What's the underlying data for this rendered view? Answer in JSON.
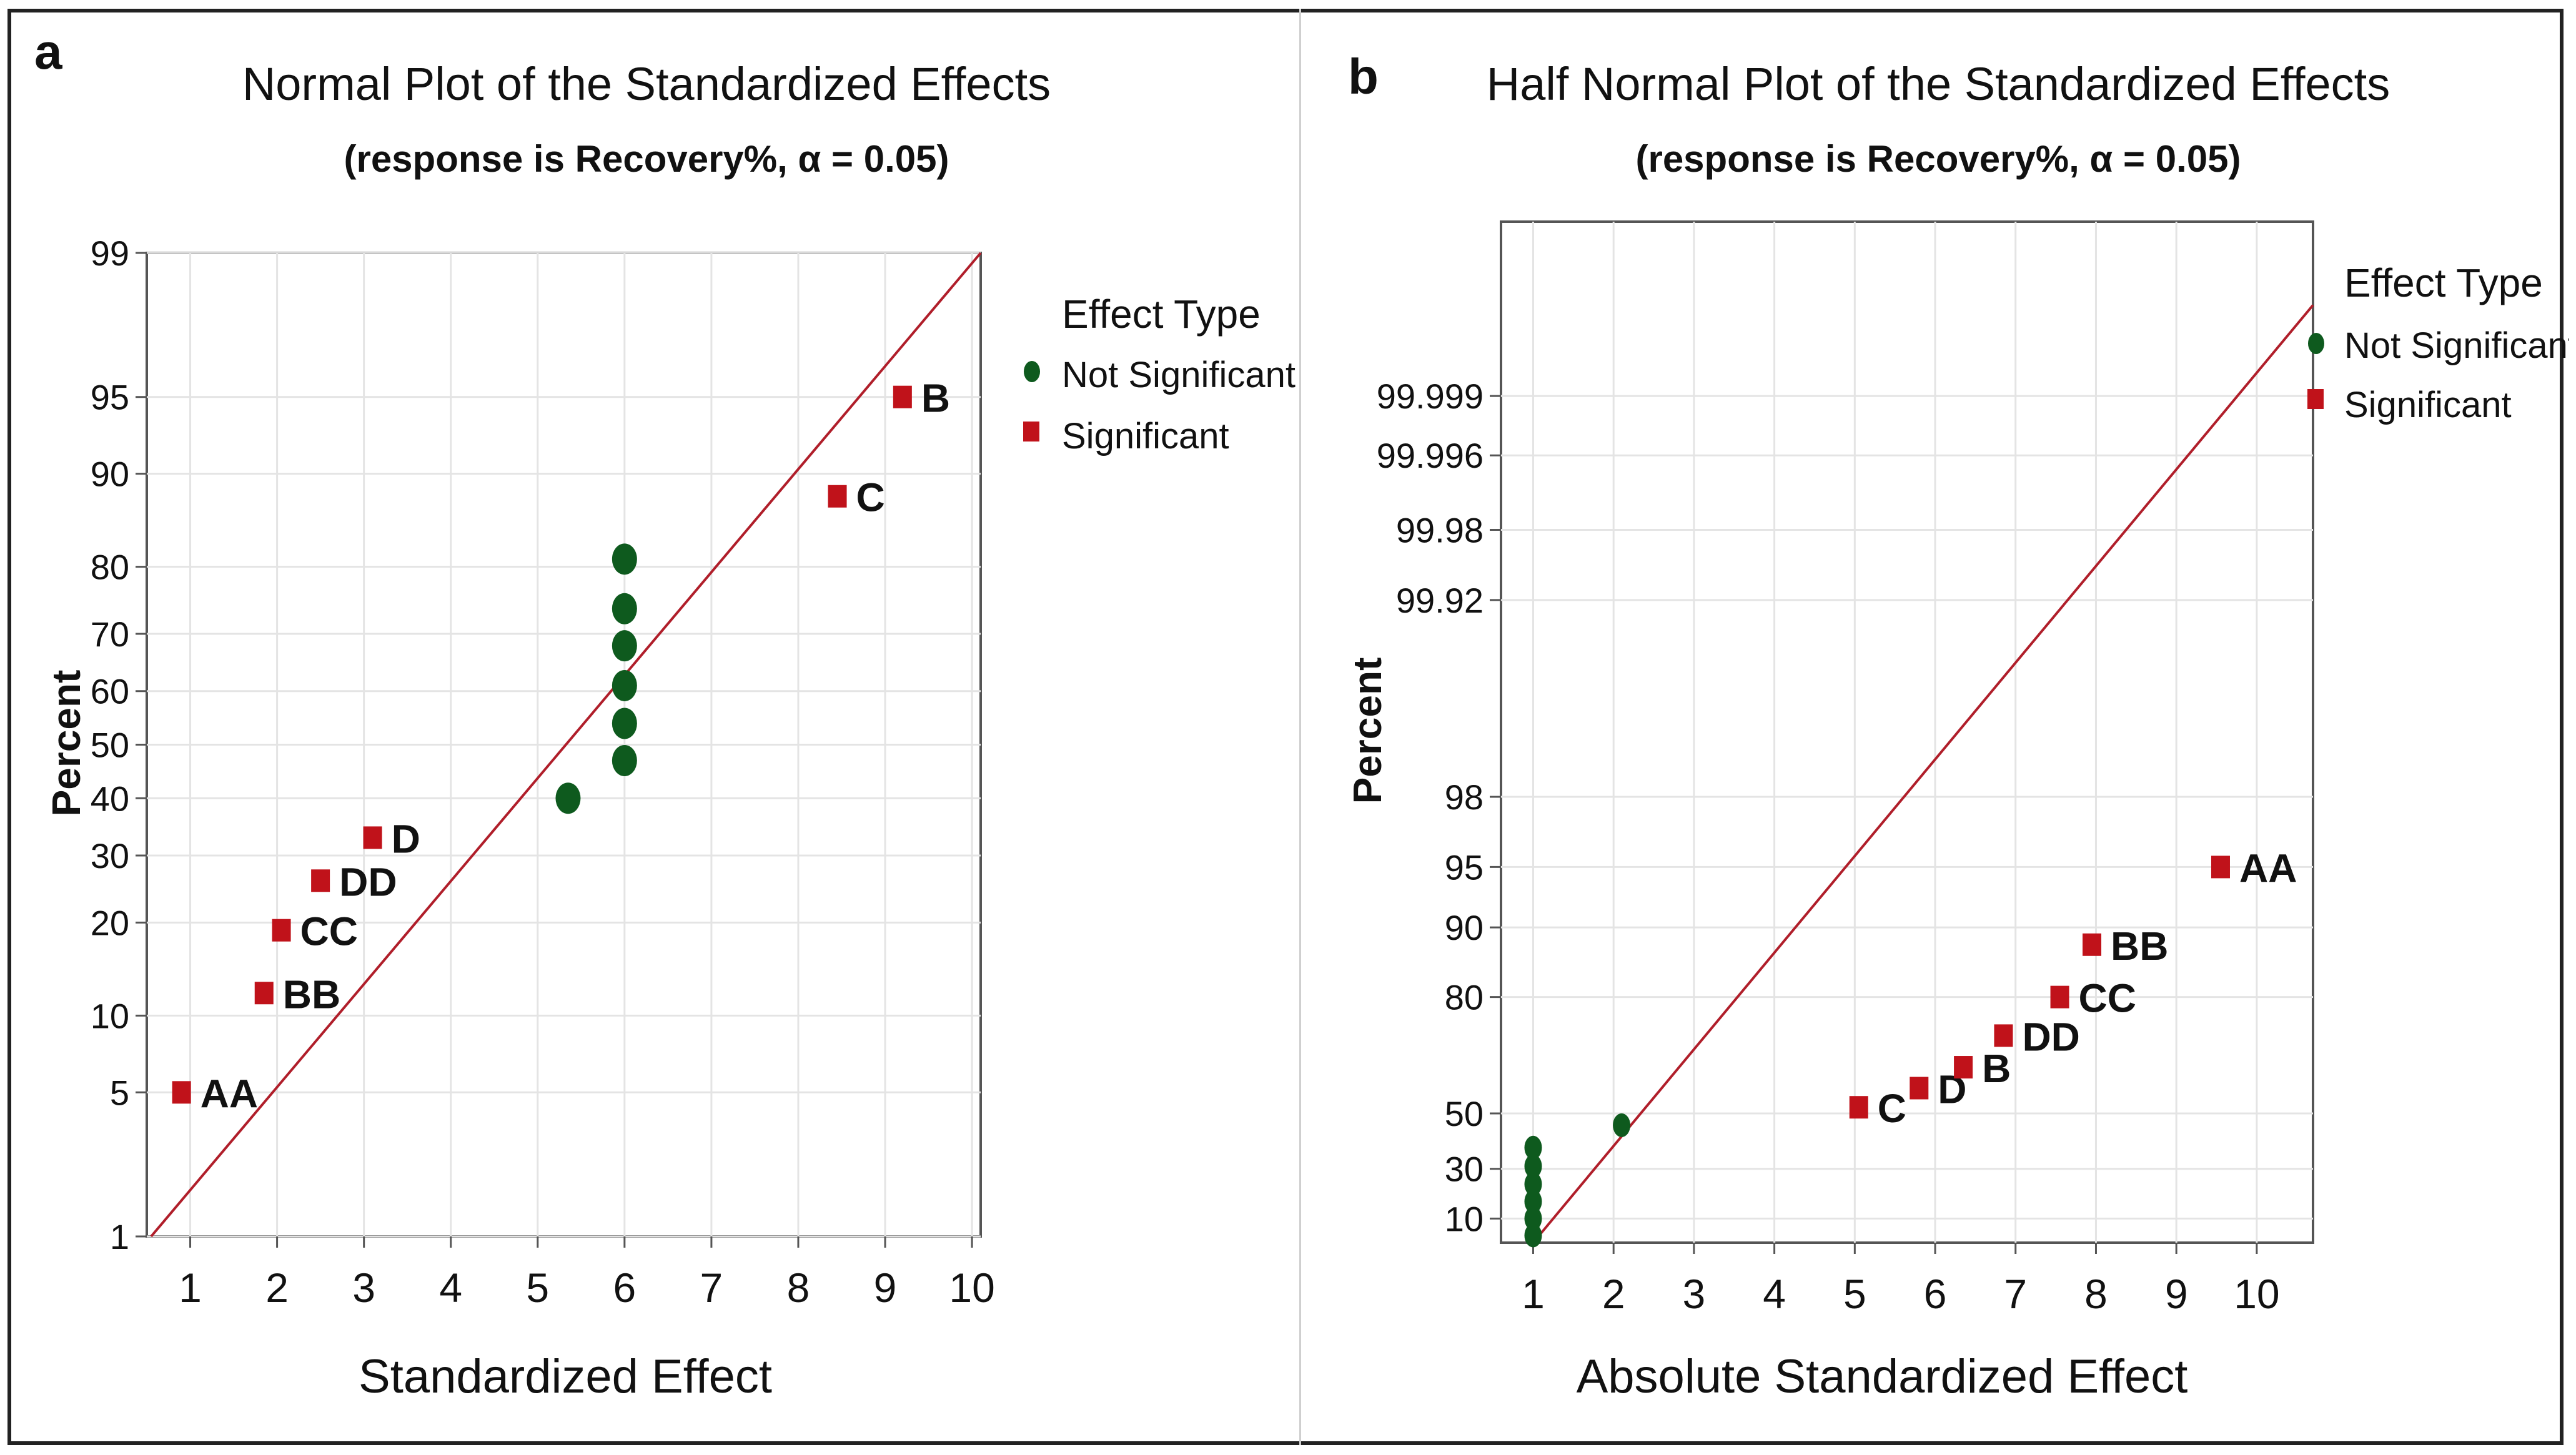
{
  "colors": {
    "significant": "#c0121a",
    "not_significant": "#0e5a1e",
    "reference_line": "#b01e2a",
    "grid": "#e4e4e4",
    "axis": "#555555",
    "text": "#111111"
  },
  "chart_data": [
    {
      "panel_letter": "a",
      "type": "scatter",
      "title": "Normal Plot of the Standardized Effects",
      "subtitle": "(response is Recovery%, α = 0.05)",
      "xlabel": "Standardized Effect",
      "ylabel": "Percent",
      "xlim": [
        0.5,
        10.1
      ],
      "ylim": [
        1,
        99
      ],
      "y_scale": "normal-probability",
      "x_ticks": [
        "1",
        "2",
        "3",
        "4",
        "5",
        "6",
        "7",
        "8",
        "9",
        "10"
      ],
      "y_ticks": [
        "1",
        "5",
        "10",
        "20",
        "30",
        "40",
        "50",
        "60",
        "70",
        "80",
        "90",
        "95",
        "99"
      ],
      "y_tick_values": [
        1,
        5,
        10,
        20,
        30,
        40,
        50,
        60,
        70,
        80,
        90,
        95,
        99
      ],
      "reference_line": [
        [
          0.55,
          1
        ],
        [
          10.1,
          99
        ]
      ],
      "legend": {
        "title": "Effect Type",
        "position": "right",
        "entries": [
          {
            "label": "Not Significant",
            "marker": "circle",
            "series": "not_significant"
          },
          {
            "label": "Significant",
            "marker": "square",
            "series": "significant"
          }
        ]
      },
      "series": [
        {
          "name": "Significant",
          "marker": "square",
          "points": [
            {
              "label": "AA",
              "x": 0.9,
              "y": 5
            },
            {
              "label": "BB",
              "x": 1.85,
              "y": 12
            },
            {
              "label": "CC",
              "x": 2.05,
              "y": 19
            },
            {
              "label": "DD",
              "x": 2.5,
              "y": 26
            },
            {
              "label": "D",
              "x": 3.1,
              "y": 33
            },
            {
              "label": "C",
              "x": 8.45,
              "y": 88
            },
            {
              "label": "B",
              "x": 9.2,
              "y": 95
            }
          ]
        },
        {
          "name": "Not Significant",
          "marker": "circle",
          "points": [
            {
              "label": "",
              "x": 5.35,
              "y": 40
            },
            {
              "label": "",
              "x": 6.0,
              "y": 47
            },
            {
              "label": "",
              "x": 6.0,
              "y": 54
            },
            {
              "label": "",
              "x": 6.0,
              "y": 61
            },
            {
              "label": "",
              "x": 6.0,
              "y": 68
            },
            {
              "label": "",
              "x": 6.0,
              "y": 74
            },
            {
              "label": "",
              "x": 6.0,
              "y": 81
            }
          ]
        }
      ]
    },
    {
      "panel_letter": "b",
      "type": "scatter",
      "title": "Half Normal Plot of the Standardized Effects",
      "subtitle": "(response is Recovery%, α = 0.05)",
      "xlabel": "Absolute Standardized Effect",
      "ylabel": "Percent",
      "xlim": [
        0.6,
        10.7
      ],
      "y_scale": "half-normal-probability",
      "x_ticks": [
        "1",
        "2",
        "3",
        "4",
        "5",
        "6",
        "7",
        "8",
        "9",
        "10"
      ],
      "y_ticks": [
        "10",
        "30",
        "50",
        "80",
        "90",
        "95",
        "98",
        "99.92",
        "99.98",
        "99.996",
        "99.999"
      ],
      "y_tick_values": [
        10,
        30,
        50,
        80,
        90,
        95,
        98,
        99.92,
        99.98,
        99.996,
        99.999
      ],
      "reference_line": [
        [
          1.0,
          0
        ],
        [
          10.7,
          99.9999
        ]
      ],
      "legend": {
        "title": "Effect Type",
        "position": "right",
        "entries": [
          {
            "label": "Not Significant",
            "marker": "circle",
            "series": "not_significant"
          },
          {
            "label": "Significant",
            "marker": "square",
            "series": "significant"
          }
        ]
      },
      "series": [
        {
          "name": "Significant",
          "marker": "square",
          "points": [
            {
              "label": "C",
              "x": 5.05,
              "y": 52
            },
            {
              "label": "D",
              "x": 5.8,
              "y": 58
            },
            {
              "label": "B",
              "x": 6.35,
              "y": 64
            },
            {
              "label": "DD",
              "x": 6.85,
              "y": 72
            },
            {
              "label": "CC",
              "x": 7.55,
              "y": 80
            },
            {
              "label": "BB",
              "x": 7.95,
              "y": 88
            },
            {
              "label": "AA",
              "x": 9.55,
              "y": 95
            }
          ]
        },
        {
          "name": "Not Significant",
          "marker": "circle",
          "points": [
            {
              "label": "",
              "x": 1.0,
              "y": 3
            },
            {
              "label": "",
              "x": 1.0,
              "y": 10
            },
            {
              "label": "",
              "x": 1.0,
              "y": 17
            },
            {
              "label": "",
              "x": 1.0,
              "y": 24
            },
            {
              "label": "",
              "x": 1.0,
              "y": 31
            },
            {
              "label": "",
              "x": 1.0,
              "y": 38
            },
            {
              "label": "",
              "x": 2.1,
              "y": 46
            }
          ]
        }
      ]
    }
  ]
}
